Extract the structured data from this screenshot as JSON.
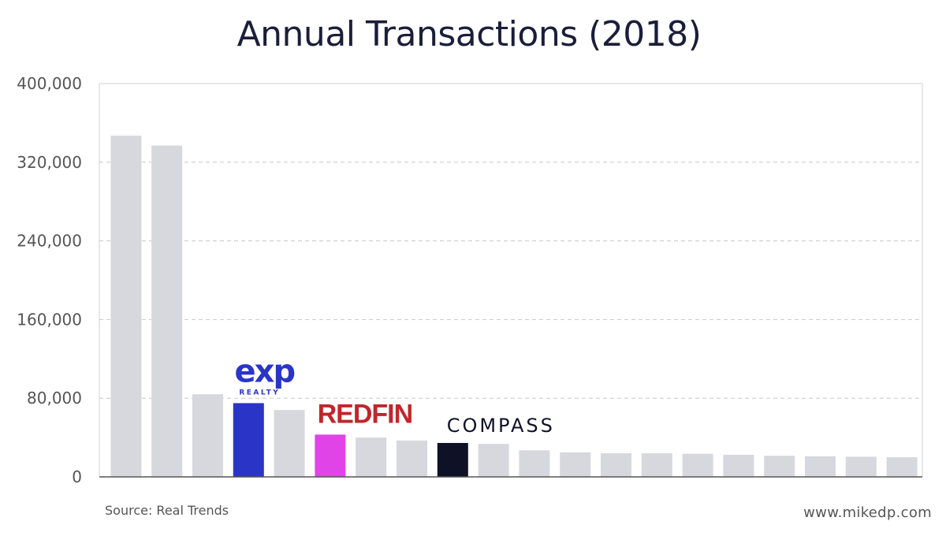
{
  "chart_data": {
    "type": "bar",
    "title": "Annual Transactions (2018)",
    "xlabel": "",
    "ylabel": "",
    "ylim": [
      0,
      400000
    ],
    "yticks": [
      0,
      80000,
      160000,
      240000,
      320000,
      400000
    ],
    "ytick_labels": [
      "0",
      "80,000",
      "160,000",
      "240,000",
      "320,000",
      "400,000"
    ],
    "grid": true,
    "values": [
      347000,
      337000,
      84000,
      75000,
      68000,
      43000,
      40000,
      37000,
      34500,
      33500,
      27000,
      25000,
      24000,
      24000,
      23500,
      22500,
      21500,
      21000,
      20500,
      20000
    ],
    "colors": [
      "#d7d8de",
      "#d7d8de",
      "#d7d8de",
      "#2a35c8",
      "#d7d8de",
      "#e044e6",
      "#d7d8de",
      "#d7d8de",
      "#0f1226",
      "#d7d8de",
      "#d7d8de",
      "#d7d8de",
      "#d7d8de",
      "#d7d8de",
      "#d7d8de",
      "#d7d8de",
      "#d7d8de",
      "#d7d8de",
      "#d7d8de",
      "#d7d8de"
    ],
    "highlighted": [
      {
        "index": 3,
        "brand": "eXp Realty",
        "logo_text": "exp",
        "logo_sub": "REALTY",
        "color": "#2a35c8"
      },
      {
        "index": 5,
        "brand": "Redfin",
        "logo_text": "REDFIN",
        "color": "#c0262b"
      },
      {
        "index": 8,
        "brand": "Compass",
        "logo_text": "COMPASS",
        "color": "#0f1226"
      }
    ]
  },
  "footer": {
    "source": "Source: Real Trends",
    "site": "www.mikedp.com"
  }
}
